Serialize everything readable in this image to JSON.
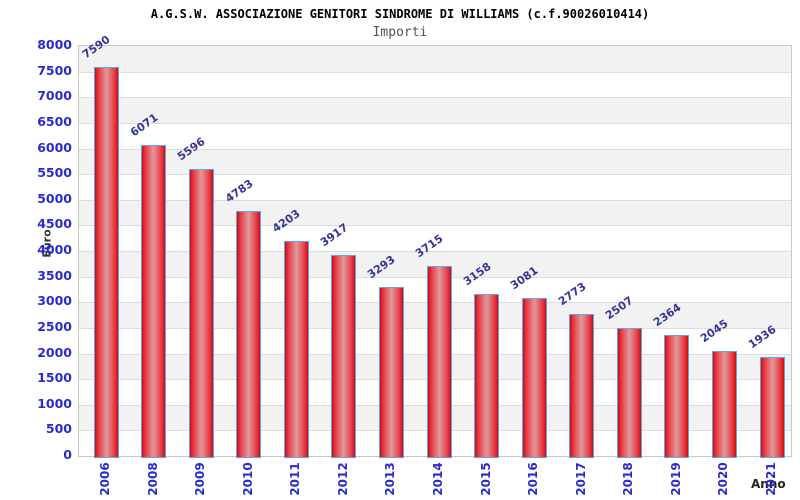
{
  "chart_data": {
    "type": "bar",
    "title": "A.G.S.W. ASSOCIAZIONE GENITORI SINDROME DI WILLIAMS (c.f.90026010414)",
    "subtitle": "Importi",
    "xlabel": "Anno",
    "ylabel": "Euro",
    "categories": [
      "2006",
      "2008",
      "2009",
      "2010",
      "2011",
      "2012",
      "2013",
      "2014",
      "2015",
      "2016",
      "2017",
      "2018",
      "2019",
      "2020",
      "2021"
    ],
    "values": [
      7590,
      6071,
      5596,
      4783,
      4203,
      3917,
      3293,
      3715,
      3158,
      3081,
      2773,
      2507,
      2364,
      2045,
      1936
    ],
    "ylim": [
      0,
      8000
    ],
    "ytick_step": 500,
    "grid": true,
    "legend": "none",
    "value_labels_shown": true,
    "colors": {
      "bar_edge": "#b5121f",
      "bar_main": "#e2202b",
      "bar_center": "#de9a9d",
      "bar_border": "#63a6db",
      "tick_label": "#2a2ad2",
      "value_label": "#333399",
      "axis_title": "#333333",
      "band_gray": "#f2f2f2",
      "band_white": "#ffffff",
      "gridline": "#dcdcdc",
      "plot_border": "#c9c9c9",
      "title": "#000000",
      "subtitle": "#555555",
      "background": "#ffffff"
    }
  }
}
